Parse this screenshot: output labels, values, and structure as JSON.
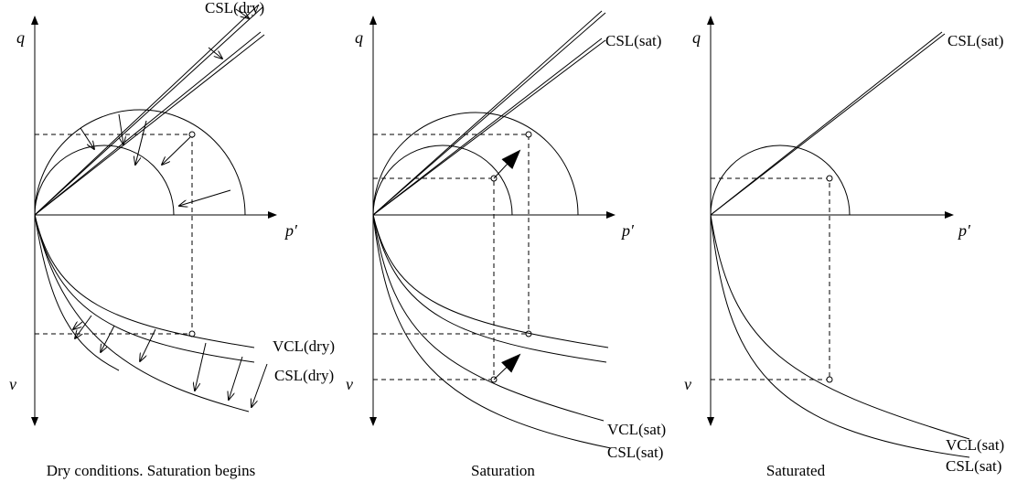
{
  "panels": [
    {
      "q": "q",
      "p": "p′",
      "v": "v",
      "csl_top": "CSL(dry)",
      "vcl": "VCL(dry)",
      "csl_bottom": "CSL(dry)",
      "caption": "Dry conditions. Saturation begins"
    },
    {
      "q": "q",
      "p": "p′",
      "v": "v",
      "csl_top": "CSL(sat)",
      "vcl": "VCL(sat)",
      "csl_bottom": "CSL(sat)",
      "caption": "Saturation"
    },
    {
      "q": "q",
      "p": "p′",
      "v": "v",
      "csl_top": "CSL(sat)",
      "vcl": "VCL(sat)",
      "csl_bottom": "CSL(sat)",
      "caption": "Saturated"
    }
  ]
}
